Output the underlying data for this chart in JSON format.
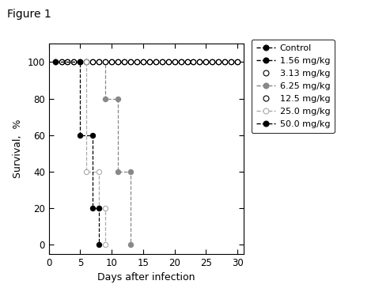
{
  "title": "Figure 1",
  "xlabel": "Days after infection",
  "ylabel": "Survival,  %",
  "xlim": [
    0,
    31
  ],
  "ylim": [
    -5,
    110
  ],
  "xticks": [
    0,
    5,
    10,
    15,
    20,
    25,
    30
  ],
  "yticks": [
    0,
    20,
    40,
    60,
    80,
    100
  ],
  "series": [
    {
      "label": "Control",
      "color": "#000000",
      "marker": "o",
      "markerfacecolor": "#000000",
      "linestyle": "--",
      "linewidth": 0.9,
      "markersize": 4.5,
      "x": [
        1,
        2,
        3,
        4,
        5,
        6,
        7,
        8,
        9,
        10,
        11,
        12,
        13,
        14,
        15,
        16,
        17,
        18,
        19,
        20,
        21,
        22,
        23,
        24,
        25,
        26,
        27,
        28,
        29,
        30
      ],
      "y": [
        100,
        100,
        100,
        100,
        100,
        100,
        100,
        100,
        100,
        100,
        100,
        100,
        100,
        100,
        100,
        100,
        100,
        100,
        100,
        100,
        100,
        100,
        100,
        100,
        100,
        100,
        100,
        100,
        100,
        100
      ]
    },
    {
      "label": "1.56 mg/kg",
      "color": "#000000",
      "marker": "o",
      "markerfacecolor": "#000000",
      "linestyle": "--",
      "linewidth": 0.9,
      "markersize": 4.5,
      "x": [
        1,
        2,
        3,
        4,
        5,
        6,
        7,
        8,
        9,
        10,
        11,
        12,
        13,
        14,
        15,
        16,
        17,
        18,
        19,
        20,
        21,
        22,
        23,
        24,
        25,
        26,
        27,
        28,
        29,
        30
      ],
      "y": [
        100,
        100,
        100,
        100,
        100,
        100,
        100,
        100,
        100,
        100,
        100,
        100,
        100,
        100,
        100,
        100,
        100,
        100,
        100,
        100,
        100,
        100,
        100,
        100,
        100,
        100,
        100,
        100,
        100,
        100
      ]
    },
    {
      "label": "3.13 mg/kg",
      "color": "#000000",
      "marker": "o",
      "markerfacecolor": "#ffffff",
      "linestyle": "None",
      "linewidth": 0,
      "markersize": 4.5,
      "x": [
        1,
        2,
        3,
        4,
        5,
        6,
        7,
        8,
        9,
        10,
        11,
        12,
        13,
        14,
        15,
        16,
        17,
        18,
        19,
        20,
        21,
        22,
        23,
        24,
        25,
        26,
        27,
        28,
        29,
        30
      ],
      "y": [
        100,
        100,
        100,
        100,
        100,
        100,
        100,
        100,
        100,
        100,
        100,
        100,
        100,
        100,
        100,
        100,
        100,
        100,
        100,
        100,
        100,
        100,
        100,
        100,
        100,
        100,
        100,
        100,
        100,
        100
      ]
    },
    {
      "label": "6.25 mg/kg",
      "color": "#888888",
      "marker": "o",
      "markerfacecolor": "#888888",
      "linestyle": "--",
      "linewidth": 0.9,
      "markersize": 4.5,
      "x": [
        1,
        9,
        9,
        11,
        11,
        13,
        13
      ],
      "y": [
        100,
        100,
        80,
        80,
        40,
        40,
        0
      ]
    },
    {
      "label": "12.5 mg/kg",
      "color": "#000000",
      "marker": "o",
      "markerfacecolor": "#ffffff",
      "linestyle": "None",
      "linewidth": 0,
      "markersize": 4.5,
      "x": [
        1,
        2,
        3,
        4,
        5,
        6,
        7,
        8,
        9,
        10,
        11,
        12,
        13,
        14,
        15,
        16,
        17,
        18,
        19,
        20,
        21,
        22,
        23,
        24,
        25,
        26,
        27,
        28,
        29,
        30
      ],
      "y": [
        100,
        100,
        100,
        100,
        100,
        100,
        100,
        100,
        100,
        100,
        100,
        100,
        100,
        100,
        100,
        100,
        100,
        100,
        100,
        100,
        100,
        100,
        100,
        100,
        100,
        100,
        100,
        100,
        100,
        100
      ]
    },
    {
      "label": "25.0 mg/kg",
      "color": "#aaaaaa",
      "marker": "o",
      "markerfacecolor": "#ffffff",
      "linestyle": "--",
      "linewidth": 0.9,
      "markersize": 4.5,
      "x": [
        1,
        6,
        6,
        8,
        8,
        9,
        9
      ],
      "y": [
        100,
        100,
        40,
        40,
        20,
        20,
        0
      ]
    },
    {
      "label": "50.0 mg/kg",
      "color": "#000000",
      "marker": "o",
      "markerfacecolor": "#000000",
      "linestyle": "--",
      "linewidth": 0.9,
      "markersize": 4.5,
      "x": [
        1,
        5,
        5,
        7,
        7,
        8,
        8
      ],
      "y": [
        100,
        100,
        60,
        60,
        20,
        20,
        0
      ]
    }
  ],
  "legend_entries": [
    {
      "label": "Control",
      "color": "#000000",
      "ls": "--",
      "mfc": "#000000",
      "ms": 5
    },
    {
      "label": "1.56 mg/kg",
      "color": "#000000",
      "ls": "--",
      "mfc": "#000000",
      "ms": 5
    },
    {
      "label": "3.13 mg/kg",
      "color": "#000000",
      "ls": "None",
      "mfc": "#ffffff",
      "ms": 5
    },
    {
      "label": "6.25 mg/kg",
      "color": "#888888",
      "ls": "--",
      "mfc": "#888888",
      "ms": 5
    },
    {
      "label": "12.5 mg/kg",
      "color": "#000000",
      "ls": "None",
      "mfc": "#ffffff",
      "ms": 5
    },
    {
      "label": "25.0 mg/kg",
      "color": "#aaaaaa",
      "ls": "--",
      "mfc": "#ffffff",
      "ms": 5
    },
    {
      "label": "50.0 mg/kg",
      "color": "#000000",
      "ls": "--",
      "mfc": "#000000",
      "ms": 5
    }
  ],
  "background_color": "#ffffff",
  "fig_title": "Figure 1",
  "figsize": [
    4.74,
    3.69
  ],
  "dpi": 100
}
